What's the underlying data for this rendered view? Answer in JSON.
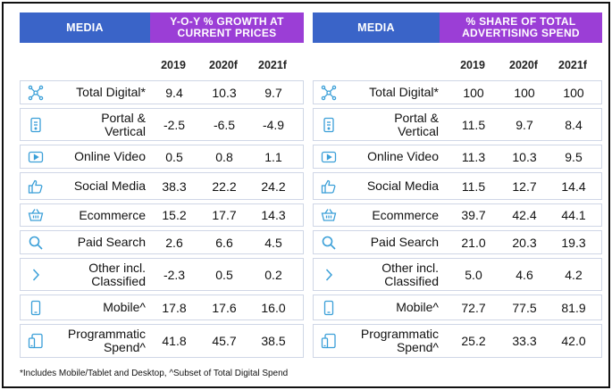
{
  "left": {
    "media_header": "MEDIA",
    "metric_header": "Y-O-Y % GROWTH AT\nCURRENT PRICES",
    "years": [
      "2019",
      "2020f",
      "2021f"
    ],
    "rows": [
      {
        "label": "Total Digital*",
        "icon": "network-icon",
        "values": [
          "9.4",
          "10.3",
          "9.7"
        ]
      },
      {
        "label": "Portal &\nVertical",
        "icon": "document-icon",
        "values": [
          "-2.5",
          "-6.5",
          "-4.9"
        ]
      },
      {
        "label": "Online Video",
        "icon": "video-play-icon",
        "values": [
          "0.5",
          "0.8",
          "1.1"
        ]
      },
      {
        "label": "Social Media",
        "icon": "thumbs-up-icon",
        "values": [
          "38.3",
          "22.2",
          "24.2"
        ]
      },
      {
        "label": "Ecommerce",
        "icon": "basket-icon",
        "values": [
          "15.2",
          "17.7",
          "14.3"
        ]
      },
      {
        "label": "Paid Search",
        "icon": "magnifier-icon",
        "values": [
          "2.6",
          "6.6",
          "4.5"
        ]
      },
      {
        "label": "Other incl.\nClassified",
        "icon": "chevron-right-icon",
        "values": [
          "-2.3",
          "0.5",
          "0.2"
        ]
      },
      {
        "label": "Mobile^",
        "icon": "mobile-phone-icon",
        "values": [
          "17.8",
          "17.6",
          "16.0"
        ]
      },
      {
        "label": "Programmatic\nSpend^",
        "icon": "devices-icon",
        "values": [
          "41.8",
          "45.7",
          "38.5"
        ]
      }
    ]
  },
  "right": {
    "media_header": "MEDIA",
    "metric_header": "% SHARE OF TOTAL\nADVERTISING SPEND",
    "years": [
      "2019",
      "2020f",
      "2021f"
    ],
    "rows": [
      {
        "label": "Total Digital*",
        "icon": "network-icon",
        "values": [
          "100",
          "100",
          "100"
        ]
      },
      {
        "label": "Portal &\nVertical",
        "icon": "document-icon",
        "values": [
          "11.5",
          "9.7",
          "8.4"
        ]
      },
      {
        "label": "Online Video",
        "icon": "video-play-icon",
        "values": [
          "11.3",
          "10.3",
          "9.5"
        ]
      },
      {
        "label": "Social Media",
        "icon": "thumbs-up-icon",
        "values": [
          "11.5",
          "12.7",
          "14.4"
        ]
      },
      {
        "label": "Ecommerce",
        "icon": "basket-icon",
        "values": [
          "39.7",
          "42.4",
          "44.1"
        ]
      },
      {
        "label": "Paid Search",
        "icon": "magnifier-icon",
        "values": [
          "21.0",
          "20.3",
          "19.3"
        ]
      },
      {
        "label": "Other incl.\nClassified",
        "icon": "chevron-right-icon",
        "values": [
          "5.0",
          "4.6",
          "4.2"
        ]
      },
      {
        "label": "Mobile^",
        "icon": "mobile-phone-icon",
        "values": [
          "72.7",
          "77.5",
          "81.9"
        ]
      },
      {
        "label": "Programmatic\nSpend^",
        "icon": "devices-icon",
        "values": [
          "25.2",
          "33.3",
          "42.0"
        ]
      }
    ]
  },
  "footnote": "*Includes Mobile/Tablet and Desktop, ^Subset of Total Digital Spend",
  "colors": {
    "media_header": "#3a64c8",
    "metric_header": "#9b3ed6",
    "icon": "#3a9fd8",
    "row_border": "#cfd6e6"
  }
}
